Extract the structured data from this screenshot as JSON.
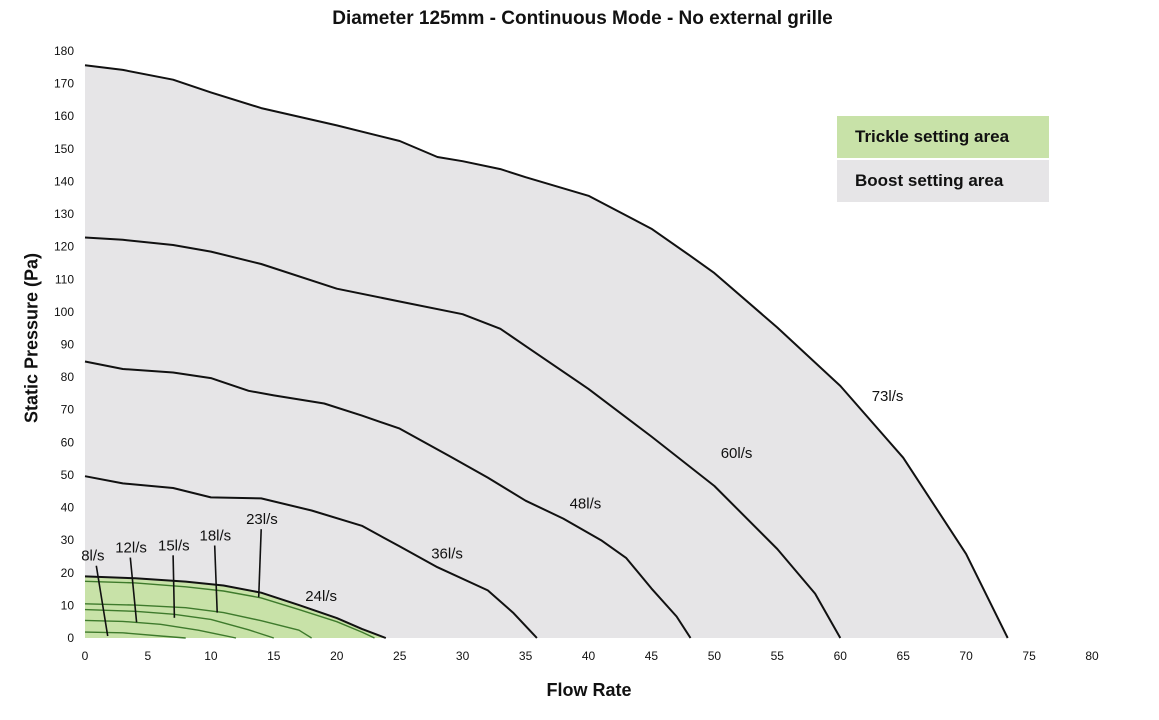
{
  "chart_data": {
    "type": "line",
    "title": "Diameter 125mm - Continuous Mode - No external grille",
    "xlabel": "Flow Rate",
    "ylabel": "Static Pressure (Pa)",
    "xlim": [
      0,
      80
    ],
    "ylim": [
      0,
      180
    ],
    "x_ticks": [
      "0",
      "5",
      "10",
      "15",
      "20",
      "25",
      "30",
      "35",
      "40",
      "45",
      "50",
      "55",
      "60",
      "65",
      "70",
      "75",
      "80"
    ],
    "y_ticks": [
      "0",
      "10",
      "20",
      "30",
      "40",
      "50",
      "60",
      "70",
      "80",
      "90",
      "100",
      "110",
      "120",
      "130",
      "140",
      "150",
      "160",
      "170",
      "180"
    ],
    "grid": false,
    "legend_position": "top-right",
    "legend": [
      {
        "label": "Trickle setting area",
        "color": "#c8e2a8"
      },
      {
        "label": "Boost setting area",
        "color": "#e6e5e7"
      }
    ],
    "colors": {
      "boost_fill": "#e6e5e7",
      "trickle_fill": "#c8e2a8",
      "trickle_line": "#3e7a2c",
      "curve": "#111111"
    },
    "series": [
      {
        "name": "73l/s",
        "area": "boost",
        "label_at": [
          62.5,
          72.7
        ],
        "leader_to": null,
        "points": [
          [
            0,
            175.6
          ],
          [
            3,
            174.2
          ],
          [
            7,
            171.2
          ],
          [
            10,
            167.3
          ],
          [
            14,
            162.5
          ],
          [
            20,
            157.2
          ],
          [
            25,
            152.4
          ],
          [
            28,
            147.5
          ],
          [
            30,
            146.2
          ],
          [
            33,
            143.8
          ],
          [
            35,
            141.3
          ],
          [
            40,
            135.6
          ],
          [
            45,
            125.5
          ],
          [
            48,
            117.4
          ],
          [
            50,
            111.9
          ],
          [
            55,
            95.2
          ],
          [
            60,
            77.3
          ],
          [
            65,
            55.3
          ],
          [
            70,
            25.8
          ],
          [
            73.3,
            0
          ]
        ]
      },
      {
        "name": "60l/s",
        "area": "boost",
        "label_at": [
          50.5,
          55.2
        ],
        "leader_to": null,
        "points": [
          [
            0,
            122.8
          ],
          [
            3,
            122.1
          ],
          [
            7,
            120.5
          ],
          [
            10,
            118.5
          ],
          [
            14,
            114.7
          ],
          [
            20,
            107.1
          ],
          [
            25,
            103.2
          ],
          [
            30,
            99.3
          ],
          [
            33,
            94.8
          ],
          [
            35,
            89.5
          ],
          [
            40,
            76.4
          ],
          [
            45,
            61.8
          ],
          [
            50,
            46.6
          ],
          [
            55,
            27.3
          ],
          [
            58,
            13.6
          ],
          [
            60,
            0
          ]
        ]
      },
      {
        "name": "48l/s",
        "area": "boost",
        "label_at": [
          38.5,
          39.7
        ],
        "leader_to": null,
        "points": [
          [
            0,
            84.8
          ],
          [
            3,
            82.5
          ],
          [
            7,
            81.4
          ],
          [
            10,
            79.7
          ],
          [
            13,
            75.8
          ],
          [
            15,
            74.4
          ],
          [
            19,
            71.9
          ],
          [
            22,
            68.2
          ],
          [
            25,
            64.2
          ],
          [
            29,
            55.7
          ],
          [
            32,
            49.2
          ],
          [
            35,
            42.1
          ],
          [
            38,
            36.6
          ],
          [
            41,
            30.0
          ],
          [
            43,
            24.5
          ],
          [
            45,
            15.2
          ],
          [
            47,
            6.6
          ],
          [
            48.1,
            0
          ]
        ]
      },
      {
        "name": "36l/s",
        "area": "boost",
        "label_at": [
          27.5,
          24.4
        ],
        "leader_to": null,
        "points": [
          [
            0,
            49.6
          ],
          [
            3,
            47.4
          ],
          [
            7,
            46.0
          ],
          [
            10,
            43.1
          ],
          [
            14,
            42.8
          ],
          [
            18,
            39.1
          ],
          [
            22,
            34.4
          ],
          [
            25,
            28.1
          ],
          [
            28,
            21.7
          ],
          [
            32,
            14.6
          ],
          [
            34,
            7.8
          ],
          [
            35.9,
            0
          ]
        ]
      },
      {
        "name": "24l/s",
        "area": "trickle",
        "label_at": [
          17.5,
          11.4
        ],
        "leader_to": null,
        "points": [
          [
            0,
            18.9
          ],
          [
            4,
            18.3
          ],
          [
            8,
            17.3
          ],
          [
            11,
            16.1
          ],
          [
            14,
            13.9
          ],
          [
            17,
            10.1
          ],
          [
            20,
            6.1
          ],
          [
            22,
            2.8
          ],
          [
            23.9,
            0
          ]
        ]
      },
      {
        "name": "23l/s",
        "area": "trickle",
        "label_at": [
          12.8,
          34.9
        ],
        "leader_to": [
          13.8,
          12.5
        ],
        "points": [
          [
            0,
            17.4
          ],
          [
            4,
            16.9
          ],
          [
            8,
            15.7
          ],
          [
            11,
            14.4
          ],
          [
            14,
            12.3
          ],
          [
            17,
            8.7
          ],
          [
            20,
            5.0
          ],
          [
            22,
            1.8
          ],
          [
            23.0,
            0
          ]
        ]
      },
      {
        "name": "18l/s",
        "area": "trickle",
        "label_at": [
          9.1,
          29.9
        ],
        "leader_to": [
          10.5,
          7.8
        ],
        "points": [
          [
            0,
            10.5
          ],
          [
            4,
            10.1
          ],
          [
            8,
            9.3
          ],
          [
            11,
            7.8
          ],
          [
            14,
            5.3
          ],
          [
            17,
            2.4
          ],
          [
            18.0,
            0
          ]
        ]
      },
      {
        "name": "15l/s",
        "area": "trickle",
        "label_at": [
          5.8,
          26.9
        ],
        "leader_to": [
          7.1,
          6.2
        ],
        "points": [
          [
            0,
            8.7
          ],
          [
            4,
            8.2
          ],
          [
            7,
            7.3
          ],
          [
            10,
            5.7
          ],
          [
            13,
            2.5
          ],
          [
            15.0,
            0
          ]
        ]
      },
      {
        "name": "12l/s",
        "area": "trickle",
        "label_at": [
          2.4,
          26.2
        ],
        "leader_to": [
          4.1,
          4.8
        ],
        "points": [
          [
            0,
            5.4
          ],
          [
            3,
            5.1
          ],
          [
            6,
            4.2
          ],
          [
            9,
            2.4
          ],
          [
            12.0,
            0
          ]
        ]
      },
      {
        "name": "8l/s",
        "area": "trickle",
        "label_at": [
          -0.3,
          23.7
        ],
        "leader_to": [
          1.8,
          0.6
        ],
        "points": [
          [
            0,
            1.8
          ],
          [
            3,
            1.6
          ],
          [
            6,
            0.6
          ],
          [
            8.0,
            0
          ]
        ]
      }
    ]
  }
}
